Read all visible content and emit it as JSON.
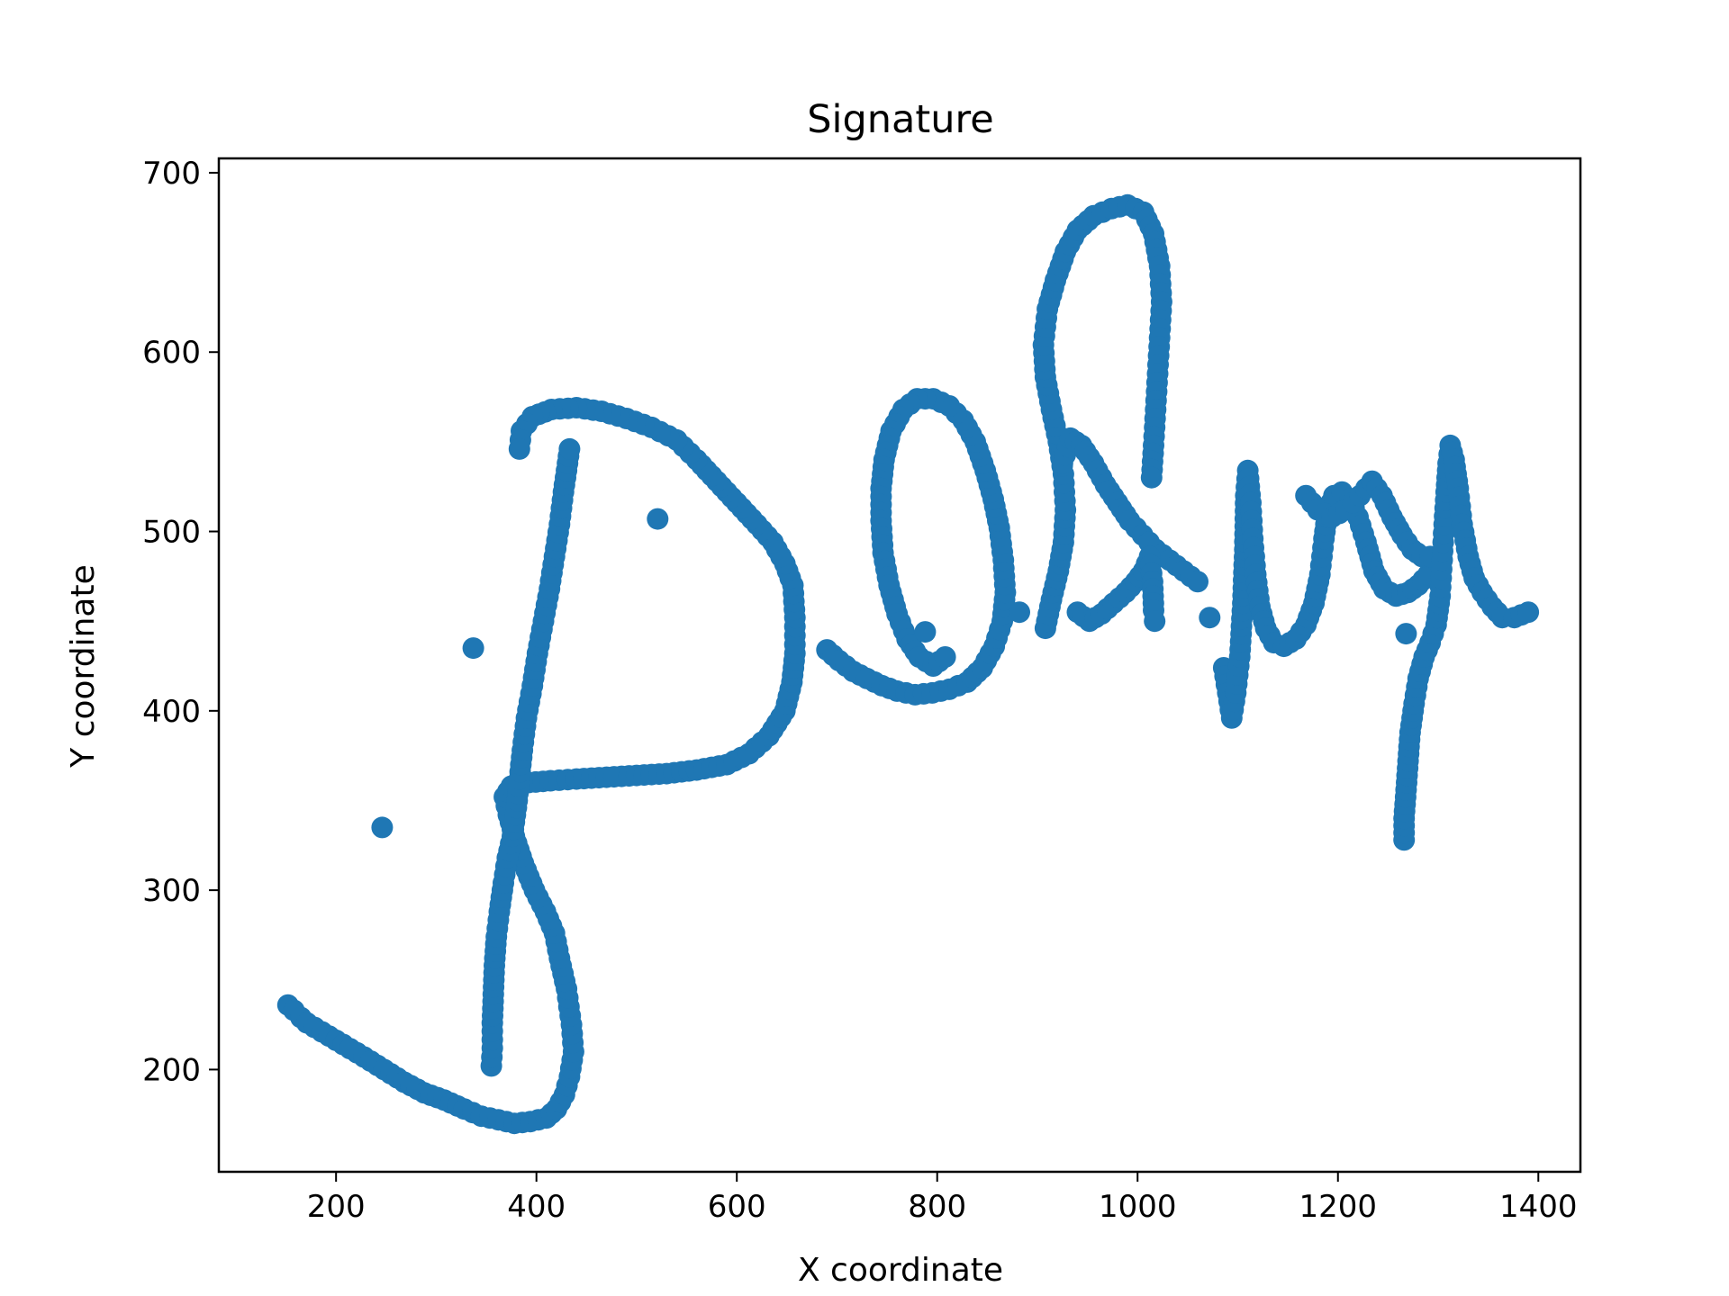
{
  "chart_data": {
    "type": "scatter",
    "title": "Signature",
    "xlabel": "X coordinate",
    "ylabel": "Y coordinate",
    "xlim": [
      83,
      1442
    ],
    "ylim": [
      143,
      708
    ],
    "xticks": [
      200,
      400,
      600,
      800,
      1000,
      1200,
      1400
    ],
    "yticks": [
      200,
      300,
      400,
      500,
      600,
      700
    ],
    "grid": false,
    "legend": "none",
    "marker_color": "#1f77b4",
    "strokes": [
      [
        [
          152,
          236
        ],
        [
          158,
          233
        ],
        [
          165,
          229
        ],
        [
          171,
          226
        ],
        [
          186,
          221
        ],
        [
          207,
          214
        ],
        [
          228,
          207
        ],
        [
          248,
          200
        ],
        [
          268,
          193
        ],
        [
          288,
          187
        ],
        [
          308,
          183
        ],
        [
          328,
          178
        ],
        [
          345,
          174
        ],
        [
          362,
          172
        ],
        [
          378,
          170
        ],
        [
          394,
          171
        ],
        [
          410,
          173
        ],
        [
          420,
          178
        ],
        [
          428,
          186
        ],
        [
          433,
          196
        ],
        [
          437,
          210
        ],
        [
          435,
          225
        ],
        [
          430,
          245
        ],
        [
          423,
          262
        ],
        [
          418,
          276
        ],
        [
          409,
          288
        ],
        [
          398,
          300
        ],
        [
          387,
          315
        ],
        [
          378,
          330
        ],
        [
          372,
          342
        ],
        [
          368,
          352
        ],
        [
          375,
          358
        ],
        [
          392,
          360
        ],
        [
          414,
          361
        ],
        [
          440,
          362
        ],
        [
          470,
          363
        ],
        [
          500,
          364
        ],
        [
          530,
          365
        ],
        [
          560,
          367
        ],
        [
          590,
          370
        ],
        [
          612,
          376
        ],
        [
          632,
          386
        ],
        [
          648,
          400
        ],
        [
          655,
          416
        ],
        [
          658,
          432
        ],
        [
          658,
          452
        ],
        [
          656,
          470
        ],
        [
          648,
          482
        ],
        [
          636,
          494
        ],
        [
          620,
          504
        ],
        [
          600,
          516
        ],
        [
          580,
          528
        ],
        [
          560,
          540
        ],
        [
          540,
          551
        ],
        [
          515,
          558
        ],
        [
          490,
          563
        ],
        [
          465,
          567
        ],
        [
          440,
          569
        ],
        [
          415,
          568
        ],
        [
          396,
          564
        ],
        [
          385,
          556
        ],
        [
          383,
          546
        ]
      ],
      [
        [
          355,
          202
        ],
        [
          356,
          212
        ],
        [
          356,
          226
        ],
        [
          357,
          242
        ],
        [
          358,
          258
        ],
        [
          360,
          274
        ],
        [
          363,
          288
        ],
        [
          367,
          304
        ],
        [
          371,
          318
        ],
        [
          376,
          330
        ],
        [
          380,
          346
        ],
        [
          383,
          362
        ],
        [
          386,
          378
        ],
        [
          390,
          396
        ],
        [
          396,
          414
        ],
        [
          401,
          432
        ],
        [
          407,
          450
        ],
        [
          413,
          468
        ],
        [
          418,
          486
        ],
        [
          423,
          504
        ],
        [
          427,
          522
        ],
        [
          431,
          538
        ],
        [
          433,
          546
        ]
      ],
      [
        [
          690,
          434
        ],
        [
          702,
          428
        ],
        [
          716,
          422
        ],
        [
          730,
          418
        ],
        [
          745,
          414
        ],
        [
          760,
          411
        ],
        [
          778,
          409
        ],
        [
          795,
          410
        ],
        [
          812,
          412
        ],
        [
          830,
          416
        ],
        [
          845,
          424
        ],
        [
          857,
          436
        ],
        [
          865,
          450
        ],
        [
          868,
          466
        ],
        [
          866,
          484
        ],
        [
          862,
          502
        ],
        [
          856,
          518
        ],
        [
          848,
          534
        ],
        [
          838,
          550
        ],
        [
          826,
          562
        ],
        [
          812,
          570
        ],
        [
          796,
          574
        ],
        [
          780,
          574
        ],
        [
          766,
          568
        ],
        [
          754,
          556
        ],
        [
          747,
          540
        ],
        [
          744,
          524
        ],
        [
          744,
          506
        ],
        [
          746,
          488
        ],
        [
          752,
          470
        ],
        [
          760,
          454
        ],
        [
          770,
          440
        ],
        [
          782,
          430
        ],
        [
          796,
          425
        ],
        [
          808,
          430
        ]
      ],
      [
        [
          788,
          444
        ]
      ],
      [
        [
          882,
          455
        ]
      ],
      [
        [
          908,
          446
        ],
        [
          914,
          462
        ],
        [
          921,
          478
        ],
        [
          926,
          494
        ],
        [
          928,
          512
        ],
        [
          926,
          532
        ],
        [
          921,
          550
        ],
        [
          914,
          568
        ],
        [
          908,
          586
        ],
        [
          906,
          604
        ],
        [
          910,
          624
        ],
        [
          918,
          640
        ],
        [
          928,
          656
        ],
        [
          940,
          668
        ],
        [
          956,
          676
        ],
        [
          974,
          680
        ],
        [
          990,
          682
        ],
        [
          1006,
          678
        ],
        [
          1016,
          666
        ],
        [
          1022,
          648
        ],
        [
          1024,
          628
        ],
        [
          1022,
          608
        ],
        [
          1020,
          588
        ],
        [
          1018,
          568
        ],
        [
          1016,
          548
        ],
        [
          1014,
          530
        ]
      ],
      [
        [
          925,
          538
        ],
        [
          933,
          552
        ],
        [
          944,
          548
        ],
        [
          956,
          538
        ],
        [
          968,
          526
        ],
        [
          980,
          516
        ],
        [
          992,
          506
        ],
        [
          1005,
          498
        ],
        [
          1018,
          490
        ],
        [
          1032,
          484
        ],
        [
          1046,
          478
        ],
        [
          1060,
          472
        ]
      ],
      [
        [
          940,
          455
        ],
        [
          952,
          450
        ],
        [
          964,
          454
        ],
        [
          976,
          460
        ],
        [
          988,
          466
        ],
        [
          998,
          472
        ],
        [
          1006,
          478
        ],
        [
          1012,
          486
        ],
        [
          1015,
          472
        ],
        [
          1016,
          456
        ],
        [
          1017,
          450
        ]
      ],
      [
        [
          1072,
          452
        ]
      ],
      [
        [
          1086,
          424
        ],
        [
          1094,
          396
        ],
        [
          1098,
          410
        ],
        [
          1102,
          430
        ],
        [
          1105,
          460
        ],
        [
          1107,
          490
        ],
        [
          1108,
          520
        ],
        [
          1110,
          534
        ],
        [
          1113,
          516
        ],
        [
          1115,
          496
        ],
        [
          1118,
          476
        ],
        [
          1122,
          458
        ],
        [
          1128,
          446
        ],
        [
          1136,
          438
        ],
        [
          1146,
          436
        ],
        [
          1158,
          440
        ],
        [
          1168,
          448
        ],
        [
          1176,
          460
        ],
        [
          1182,
          476
        ],
        [
          1186,
          496
        ],
        [
          1190,
          512
        ],
        [
          1196,
          520
        ],
        [
          1204,
          522
        ],
        [
          1212,
          518
        ],
        [
          1220,
          508
        ],
        [
          1228,
          494
        ],
        [
          1236,
          478
        ],
        [
          1246,
          468
        ],
        [
          1258,
          464
        ],
        [
          1270,
          466
        ],
        [
          1280,
          470
        ],
        [
          1290,
          476
        ]
      ],
      [
        [
          1168,
          520
        ],
        [
          1180,
          512
        ],
        [
          1194,
          508
        ],
        [
          1208,
          512
        ],
        [
          1222,
          520
        ],
        [
          1234,
          528
        ],
        [
          1244,
          520
        ],
        [
          1254,
          508
        ],
        [
          1264,
          498
        ],
        [
          1274,
          490
        ],
        [
          1284,
          486
        ],
        [
          1292,
          486
        ]
      ],
      [
        [
          1266,
          328
        ],
        [
          1266,
          340
        ],
        [
          1268,
          356
        ],
        [
          1270,
          372
        ],
        [
          1272,
          388
        ],
        [
          1276,
          404
        ],
        [
          1280,
          418
        ],
        [
          1286,
          430
        ],
        [
          1292,
          438
        ],
        [
          1298,
          448
        ],
        [
          1302,
          464
        ],
        [
          1304,
          484
        ],
        [
          1306,
          504
        ],
        [
          1308,
          522
        ],
        [
          1310,
          538
        ],
        [
          1312,
          548
        ],
        [
          1316,
          540
        ],
        [
          1320,
          524
        ],
        [
          1324,
          504
        ],
        [
          1330,
          486
        ],
        [
          1336,
          474
        ],
        [
          1344,
          466
        ],
        [
          1354,
          458
        ],
        [
          1364,
          452
        ],
        [
          1376,
          452
        ],
        [
          1390,
          455
        ]
      ],
      [
        [
          1268,
          443
        ]
      ],
      [
        [
          337,
          435
        ]
      ],
      [
        [
          246,
          335
        ]
      ],
      [
        [
          521,
          507
        ]
      ]
    ]
  }
}
